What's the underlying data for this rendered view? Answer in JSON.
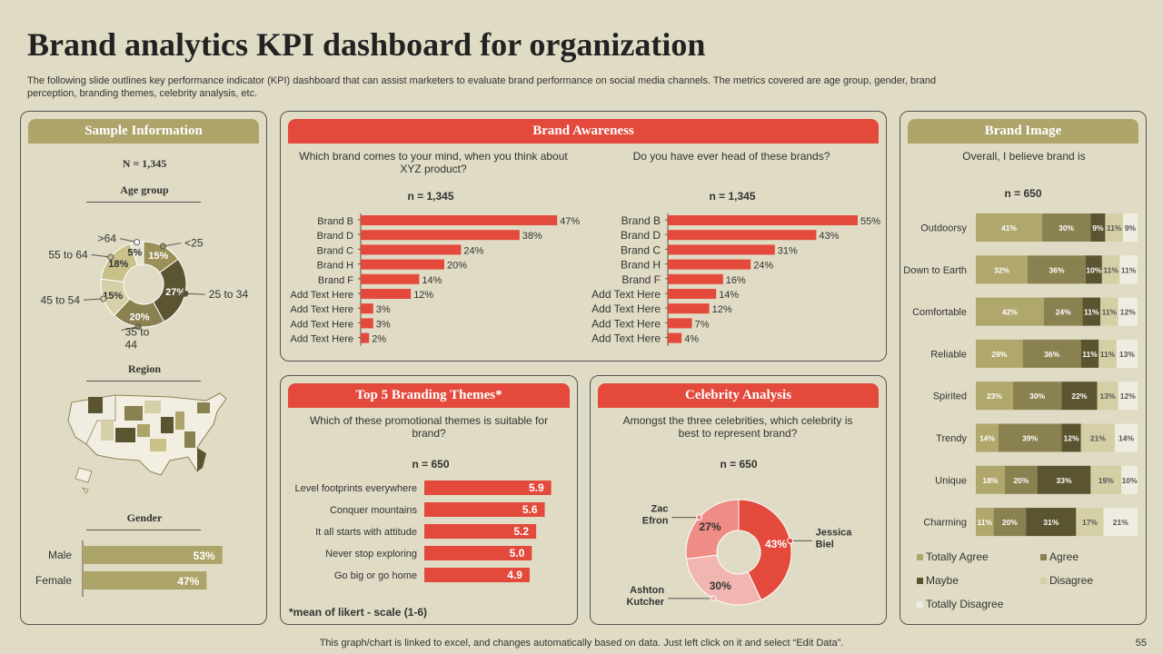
{
  "title": "Brand analytics KPI dashboard for organization",
  "subtitle": "The following slide outlines key performance indicator (KPI) dashboard that can assist marketers to evaluate brand performance on social media channels. The metrics covered are age group, gender, brand perception, branding themes, celebrity analysis, etc.",
  "footer": "This graph/chart is linked to excel,  and changes automatically based on data. Just left click on it and select “Edit Data”.",
  "page_number": "55",
  "colors": {
    "olive": "#ada46a",
    "red": "#e34a3c",
    "bg": "#e0dbc4"
  },
  "sample": {
    "header": "Sample Information",
    "n": "N = 1,345",
    "age_title": "Age group",
    "region_title": "Region",
    "gender_title": "Gender",
    "map_icon": "usa-map-icon"
  },
  "awareness": {
    "header": "Brand Awareness",
    "q1": "Which brand comes to your mind, when you think about XYZ  product?",
    "q2": "Do you have ever head of these brands?",
    "n1": "n = 1,345",
    "n2": "n = 1,345"
  },
  "themes": {
    "header": "Top 5 Branding Themes*",
    "question": "Which of these promotional themes is suitable for brand?",
    "n": "n = 650",
    "note": "*mean of likert - scale (1-6)"
  },
  "celebrity": {
    "header": "Celebrity Analysis",
    "question": "Amongst the three celebrities, which celebrity is best to represent brand?",
    "n": "n = 650"
  },
  "image": {
    "header": "Brand Image",
    "question": "Overall, I believe brand is",
    "n": "n = 650"
  },
  "chart_data": [
    {
      "id": "age",
      "type": "pie",
      "title": "Age group",
      "categories": [
        ">64",
        "<25",
        "25 to 34",
        "35 to 44",
        "45 to 54",
        "55 to 64"
      ],
      "values": [
        5,
        15,
        27,
        20,
        15,
        18
      ],
      "labels": [
        "5%",
        "15%",
        "27%",
        "20%",
        "15%",
        "18%"
      ],
      "colors": [
        "#e8e4d0",
        "#9a9058",
        "#5a5430",
        "#8a8150",
        "#d6d0a8",
        "#c9c18a"
      ]
    },
    {
      "id": "gender",
      "type": "bar",
      "title": "Gender",
      "categories": [
        "Male",
        "Female"
      ],
      "values": [
        53,
        47
      ],
      "labels": [
        "53%",
        "47%"
      ],
      "xlim": [
        0,
        100
      ]
    },
    {
      "id": "awareness1",
      "type": "bar",
      "title": "Which brand comes to your mind, when you think about XYZ  product?",
      "categories": [
        "Brand B",
        "Brand D",
        "Brand C",
        "Brand H",
        "Brand F",
        "Add Text Here",
        "Add Text Here",
        "Add Text Here",
        "Add Text Here"
      ],
      "values": [
        47,
        38,
        24,
        20,
        14,
        12,
        3,
        3,
        2
      ],
      "labels": [
        "47%",
        "38%",
        "24%",
        "20%",
        "14%",
        "12%",
        "3%",
        "3%",
        "2%"
      ],
      "xlim": [
        0,
        100
      ]
    },
    {
      "id": "awareness2",
      "type": "bar",
      "title": "Do you have ever head of these brands?",
      "categories": [
        "Brand B",
        "Brand D",
        "Brand C",
        "Brand H",
        "Brand F",
        "Add Text Here",
        "Add Text Here",
        "Add Text Here",
        "Add Text Here"
      ],
      "values": [
        55,
        43,
        31,
        24,
        16,
        14,
        12,
        7,
        4
      ],
      "labels": [
        "55%",
        "43%",
        "31%",
        "24%",
        "16%",
        "14%",
        "12%",
        "7%",
        "4%"
      ],
      "xlim": [
        0,
        100
      ]
    },
    {
      "id": "themes",
      "type": "bar",
      "title": "Which of these promotional themes is suitable for brand?",
      "categories": [
        "Level footprints everywhere",
        "Conquer mountains",
        "It all starts with attitude",
        "Never stop exploring",
        "Go big or go home"
      ],
      "values": [
        5.9,
        5.6,
        5.2,
        5.0,
        4.9
      ],
      "labels": [
        "5.9",
        "5.6",
        "5.2",
        "5.0",
        "4.9"
      ],
      "xlim": [
        0,
        6
      ]
    },
    {
      "id": "celebrity",
      "type": "pie",
      "title": "Amongst the three celebrities, which celebrity is best to represent brand?",
      "categories": [
        "Jessica Biel",
        "Ashton Kutcher",
        "Zac Efron"
      ],
      "values": [
        43,
        30,
        27
      ],
      "labels": [
        "43%",
        "30%",
        "27%"
      ],
      "colors": [
        "#e34a3c",
        "#f2b6b0",
        "#ee8c85"
      ]
    },
    {
      "id": "brand_image",
      "type": "bar",
      "stacked": true,
      "title": "Overall, I believe brand is",
      "categories": [
        "Outdoorsy",
        "Down to Earth",
        "Comfortable",
        "Reliable",
        "Spirited",
        "Trendy",
        "Unique",
        "Charming"
      ],
      "series": [
        {
          "name": "Totally Agree",
          "color": "#b0a76c",
          "values": [
            41,
            32,
            42,
            29,
            23,
            14,
            18,
            11
          ],
          "labels": [
            "41%",
            "32%",
            "42%",
            "29%",
            "23%",
            "14%",
            "18%",
            "11%"
          ]
        },
        {
          "name": "Agree",
          "color": "#8a8150",
          "values": [
            30,
            36,
            24,
            36,
            30,
            39,
            20,
            20
          ],
          "labels": [
            "30%",
            "36%",
            "24%",
            "36%",
            "30%",
            "39%",
            "20%",
            "20%"
          ]
        },
        {
          "name": "Maybe",
          "color": "#5a5430",
          "values": [
            9,
            10,
            11,
            11,
            22,
            12,
            33,
            31
          ],
          "labels": [
            "9%",
            "10%",
            "11%",
            "11%",
            "22%",
            "12%",
            "33%",
            "31%"
          ]
        },
        {
          "name": "Disagree",
          "color": "#d5cfa6",
          "values": [
            11,
            11,
            11,
            11,
            13,
            21,
            19,
            17
          ],
          "labels": [
            "11%",
            "11%",
            "11%",
            "11%",
            "13%",
            "21%",
            "19%",
            "17%"
          ]
        },
        {
          "name": "Totally Disagree",
          "color": "#efede2",
          "values": [
            9,
            11,
            12,
            13,
            12,
            14,
            10,
            21
          ],
          "labels": [
            "9%",
            "11%",
            "12%",
            "13%",
            "12%",
            "14%",
            "10%",
            "21%"
          ]
        }
      ],
      "xlim": [
        0,
        100
      ]
    }
  ]
}
